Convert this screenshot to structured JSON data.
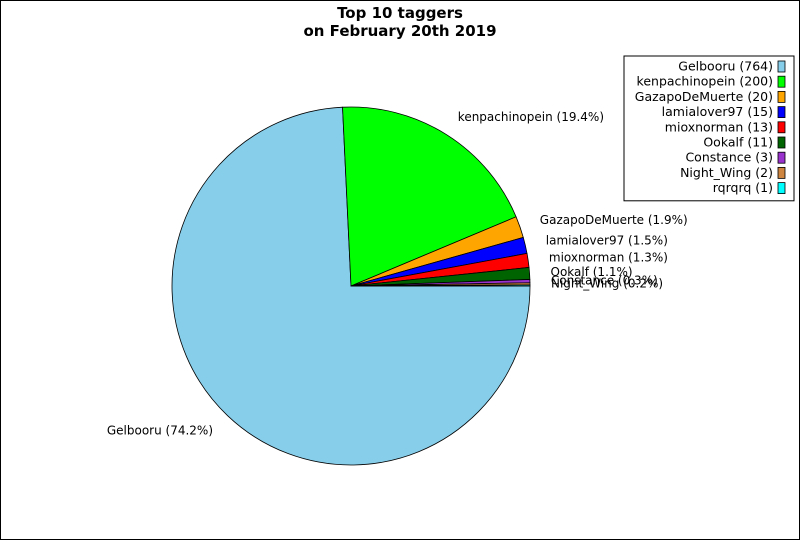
{
  "chart_data": {
    "type": "pie",
    "title_lines": [
      "Top 10 taggers",
      "on February 20th 2019"
    ],
    "start_angle_deg": 0,
    "direction": "clockwise",
    "legend_position": "top-right",
    "slices": [
      {
        "name": "Gelbooru",
        "value": 764,
        "pie_label": "Gelbooru (74.2%)",
        "legend_label": "Gelbooru (764)",
        "color": "#87ceeb"
      },
      {
        "name": "kenpachinopein",
        "value": 200,
        "pie_label": "kenpachinopein (19.4%)",
        "legend_label": "kenpachinopein (200)",
        "color": "#00ff00"
      },
      {
        "name": "GazapoDeMuerte",
        "value": 20,
        "pie_label": "GazapoDeMuerte (1.9%)",
        "legend_label": "GazapoDeMuerte (20)",
        "color": "#ffa500"
      },
      {
        "name": "lamialover97",
        "value": 15,
        "pie_label": "lamialover97 (1.5%)",
        "legend_label": "lamialover97 (15)",
        "color": "#0000ff"
      },
      {
        "name": "mioxnorman",
        "value": 13,
        "pie_label": "mioxnorman (1.3%)",
        "legend_label": "mioxnorman (13)",
        "color": "#ff0000"
      },
      {
        "name": "Ookalf",
        "value": 11,
        "pie_label": "Ookalf (1.1%)",
        "legend_label": "Ookalf (11)",
        "color": "#006400"
      },
      {
        "name": "Constance",
        "value": 3,
        "pie_label": "Constance (0.3%)",
        "legend_label": "Constance (3)",
        "color": "#9932cc"
      },
      {
        "name": "Night_Wing",
        "value": 2,
        "pie_label": "Night_Wing (0.2%)",
        "legend_label": "Night_Wing (2)",
        "color": "#cd853f"
      },
      {
        "name": "rqrqrq",
        "value": 1,
        "pie_label": "",
        "legend_label": "rqrqrq (1)",
        "color": "#00ffff"
      }
    ]
  }
}
